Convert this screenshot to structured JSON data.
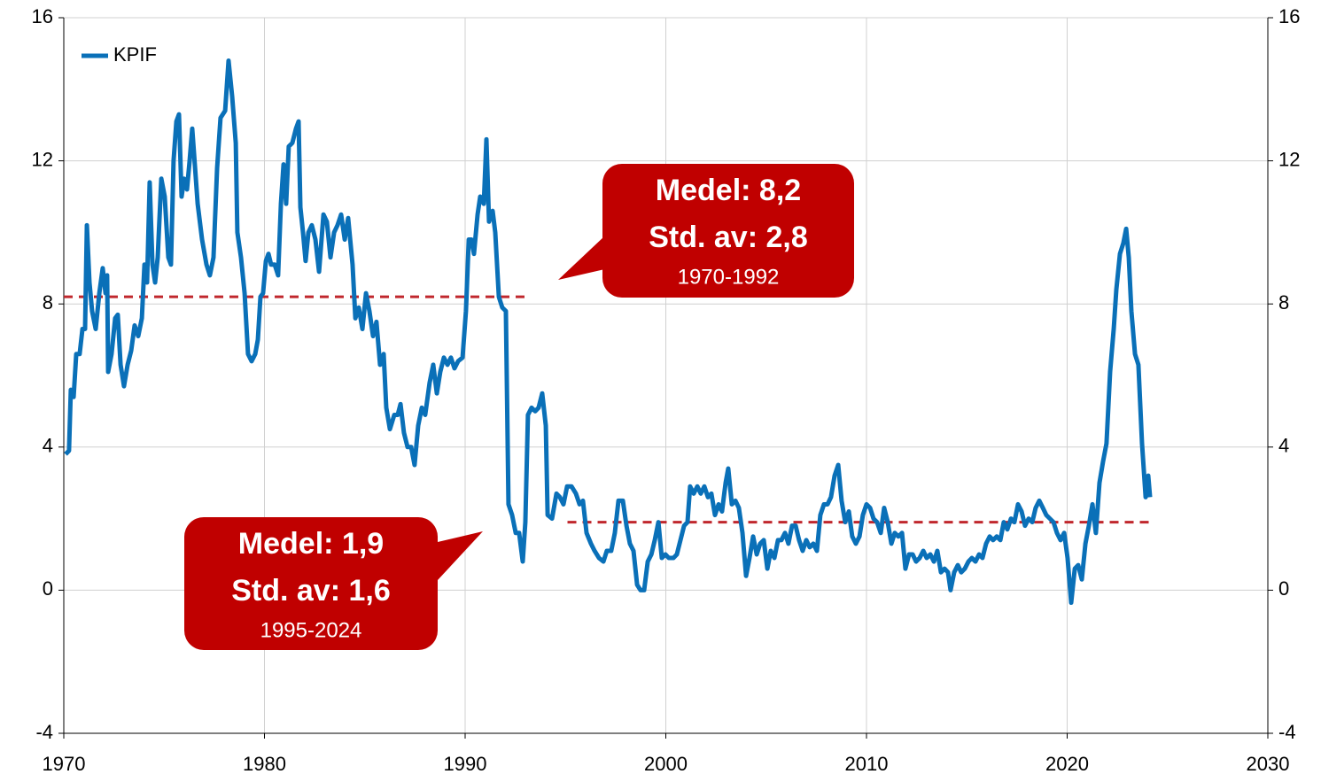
{
  "chart_data": {
    "type": "line",
    "x": [
      1970.09,
      1970.26,
      1970.35,
      1970.49,
      1970.62,
      1970.79,
      1970.93,
      1971.06,
      1971.15,
      1971.28,
      1971.41,
      1971.59,
      1971.77,
      1971.94,
      1972.08,
      1972.16,
      1972.21,
      1972.38,
      1972.56,
      1972.69,
      1972.83,
      1973.0,
      1973.18,
      1973.36,
      1973.53,
      1973.71,
      1973.89,
      1974.02,
      1974.15,
      1974.28,
      1974.42,
      1974.55,
      1974.68,
      1974.86,
      1975.03,
      1975.21,
      1975.34,
      1975.47,
      1975.61,
      1975.74,
      1975.87,
      1976.0,
      1976.14,
      1976.27,
      1976.4,
      1976.53,
      1976.67,
      1976.89,
      1977.11,
      1977.28,
      1977.46,
      1977.64,
      1977.81,
      1978.04,
      1978.21,
      1978.39,
      1978.57,
      1978.65,
      1978.83,
      1979.01,
      1979.18,
      1979.36,
      1979.54,
      1979.67,
      1979.8,
      1979.93,
      1980.07,
      1980.2,
      1980.33,
      1980.51,
      1980.68,
      1980.82,
      1980.95,
      1981.08,
      1981.21,
      1981.39,
      1981.57,
      1981.7,
      1981.79,
      1981.92,
      1982.05,
      1982.19,
      1982.36,
      1982.54,
      1982.72,
      1982.94,
      1983.11,
      1983.29,
      1983.47,
      1983.64,
      1983.82,
      1984.0,
      1984.17,
      1984.39,
      1984.53,
      1984.7,
      1984.88,
      1985.06,
      1985.23,
      1985.41,
      1985.58,
      1985.76,
      1985.94,
      1986.07,
      1986.25,
      1986.47,
      1986.64,
      1986.78,
      1986.95,
      1987.13,
      1987.31,
      1987.48,
      1987.66,
      1987.84,
      1988.01,
      1988.23,
      1988.41,
      1988.59,
      1988.76,
      1988.94,
      1989.12,
      1989.29,
      1989.47,
      1989.65,
      1989.87,
      1990.04,
      1990.18,
      1990.31,
      1990.44,
      1990.62,
      1990.75,
      1990.93,
      1991.06,
      1991.19,
      1991.37,
      1991.5,
      1991.68,
      1991.85,
      1992.03,
      1992.16,
      1992.34,
      1992.52,
      1992.69,
      1992.87,
      1993.0,
      1993.13,
      1993.31,
      1993.49,
      1993.66,
      1993.84,
      1994.02,
      1994.11,
      1994.33,
      1994.55,
      1994.72,
      1994.9,
      1995.08,
      1995.3,
      1995.52,
      1995.7,
      1995.87,
      1996.05,
      1996.27,
      1996.45,
      1996.67,
      1996.89,
      1997.06,
      1997.28,
      1997.46,
      1997.64,
      1997.86,
      1998.04,
      1998.21,
      1998.39,
      1998.57,
      1998.74,
      1998.92,
      1999.1,
      1999.28,
      1999.45,
      1999.63,
      1999.8,
      1999.98,
      2000.15,
      2000.38,
      2000.55,
      2000.73,
      2000.91,
      2001.08,
      2001.21,
      2001.39,
      2001.57,
      2001.74,
      2001.92,
      2002.1,
      2002.27,
      2002.45,
      2002.63,
      2002.8,
      2002.98,
      2003.11,
      2003.29,
      2003.47,
      2003.64,
      2003.82,
      2004.0,
      2004.17,
      2004.35,
      2004.53,
      2004.7,
      2004.88,
      2005.06,
      2005.23,
      2005.41,
      2005.59,
      2005.76,
      2005.94,
      2006.11,
      2006.29,
      2006.47,
      2006.64,
      2006.82,
      2007.0,
      2007.17,
      2007.35,
      2007.53,
      2007.7,
      2007.88,
      2008.06,
      2008.23,
      2008.41,
      2008.59,
      2008.76,
      2008.94,
      2009.12,
      2009.29,
      2009.47,
      2009.65,
      2009.82,
      2010.0,
      2010.18,
      2010.35,
      2010.53,
      2010.71,
      2010.88,
      2011.06,
      2011.24,
      2011.41,
      2011.59,
      2011.77,
      2011.94,
      2012.12,
      2012.3,
      2012.47,
      2012.65,
      2012.83,
      2013.0,
      2013.18,
      2013.36,
      2013.53,
      2013.71,
      2013.89,
      2014.06,
      2014.19,
      2014.37,
      2014.55,
      2014.72,
      2014.9,
      2015.08,
      2015.25,
      2015.43,
      2015.61,
      2015.78,
      2015.96,
      2016.14,
      2016.31,
      2016.49,
      2016.67,
      2016.84,
      2017.02,
      2017.2,
      2017.37,
      2017.55,
      2017.73,
      2017.9,
      2018.08,
      2018.26,
      2018.43,
      2018.61,
      2018.79,
      2018.96,
      2019.14,
      2019.32,
      2019.49,
      2019.67,
      2019.85,
      2020.02,
      2020.2,
      2020.38,
      2020.55,
      2020.73,
      2020.91,
      2021.08,
      2021.26,
      2021.43,
      2021.61,
      2021.79,
      2021.96,
      2022.14,
      2022.32,
      2022.45,
      2022.63,
      2022.8,
      2022.94,
      2023.07,
      2023.2,
      2023.38,
      2023.55,
      2023.73,
      2023.91,
      2024.04,
      2024.13
    ],
    "series": [
      {
        "name": "KPIF",
        "color": "#0a70b8",
        "values": [
          3.8,
          3.9,
          5.6,
          5.4,
          6.6,
          6.6,
          7.3,
          7.3,
          10.2,
          8.6,
          7.8,
          7.3,
          8.3,
          9.0,
          8.3,
          8.8,
          6.1,
          6.6,
          7.6,
          7.7,
          6.3,
          5.7,
          6.3,
          6.7,
          7.4,
          7.1,
          7.6,
          9.1,
          8.6,
          11.4,
          9.1,
          8.6,
          9.3,
          11.5,
          11.0,
          9.3,
          9.1,
          12.0,
          13.1,
          13.3,
          11.0,
          11.5,
          11.2,
          12.0,
          12.9,
          11.9,
          10.8,
          9.8,
          9.1,
          8.8,
          9.3,
          11.8,
          13.2,
          13.4,
          14.8,
          13.8,
          12.5,
          10.0,
          9.3,
          8.3,
          6.6,
          6.4,
          6.6,
          7.0,
          8.2,
          8.3,
          9.2,
          9.4,
          9.1,
          9.1,
          8.8,
          10.8,
          11.9,
          10.8,
          12.4,
          12.5,
          12.9,
          13.1,
          10.7,
          10.0,
          9.2,
          10.0,
          10.2,
          9.8,
          8.9,
          10.5,
          10.3,
          9.3,
          10.0,
          10.2,
          10.5,
          9.8,
          10.4,
          9.1,
          7.6,
          7.9,
          7.3,
          8.3,
          7.8,
          7.1,
          7.5,
          6.3,
          6.6,
          5.1,
          4.5,
          4.9,
          4.9,
          5.2,
          4.4,
          4.0,
          4.0,
          3.5,
          4.6,
          5.1,
          4.9,
          5.8,
          6.3,
          5.5,
          6.1,
          6.5,
          6.3,
          6.5,
          6.2,
          6.4,
          6.5,
          7.8,
          9.8,
          9.8,
          9.4,
          10.5,
          11.0,
          10.8,
          12.6,
          10.3,
          10.6,
          10.0,
          8.2,
          7.9,
          7.8,
          2.4,
          2.1,
          1.6,
          1.6,
          0.8,
          1.9,
          4.9,
          5.1,
          5.0,
          5.1,
          5.5,
          4.6,
          2.1,
          2.0,
          2.7,
          2.6,
          2.4,
          2.9,
          2.9,
          2.7,
          2.4,
          2.5,
          1.6,
          1.3,
          1.1,
          0.9,
          0.8,
          1.1,
          1.1,
          1.6,
          2.5,
          2.5,
          1.8,
          1.3,
          1.1,
          0.15,
          0.0,
          0.0,
          0.8,
          1.0,
          1.4,
          1.9,
          0.9,
          1.0,
          0.9,
          0.9,
          1.0,
          1.4,
          1.8,
          1.9,
          2.9,
          2.7,
          2.9,
          2.7,
          2.9,
          2.6,
          2.7,
          2.1,
          2.4,
          2.2,
          3.0,
          3.4,
          2.4,
          2.5,
          2.3,
          1.6,
          0.4,
          0.9,
          1.5,
          1.0,
          1.3,
          1.4,
          0.6,
          1.1,
          0.9,
          1.4,
          1.4,
          1.6,
          1.3,
          1.8,
          1.8,
          1.4,
          1.1,
          1.4,
          1.2,
          1.3,
          1.1,
          2.1,
          2.4,
          2.4,
          2.6,
          3.2,
          3.5,
          2.5,
          1.9,
          2.2,
          1.5,
          1.3,
          1.5,
          2.1,
          2.4,
          2.3,
          2.0,
          1.9,
          1.6,
          2.3,
          1.9,
          1.3,
          1.6,
          1.5,
          1.6,
          0.6,
          1.0,
          1.0,
          0.8,
          0.9,
          1.1,
          0.9,
          1.0,
          0.8,
          1.1,
          0.5,
          0.6,
          0.5,
          0.0,
          0.5,
          0.7,
          0.5,
          0.6,
          0.8,
          0.9,
          0.8,
          1.0,
          0.9,
          1.3,
          1.5,
          1.4,
          1.5,
          1.4,
          1.9,
          1.7,
          2.0,
          1.9,
          2.4,
          2.2,
          1.8,
          2.0,
          1.9,
          2.3,
          2.5,
          2.3,
          2.1,
          2.0,
          1.9,
          1.6,
          1.4,
          1.6,
          0.9,
          -0.35,
          0.6,
          0.7,
          0.3,
          1.3,
          1.8,
          2.4,
          1.6,
          3.0,
          3.6,
          4.1,
          6.1,
          7.3,
          8.4,
          9.4,
          9.7,
          10.1,
          9.3,
          7.8,
          6.6,
          6.3,
          4.1,
          2.6,
          3.2,
          2.6
        ]
      }
    ],
    "reference_lines": [
      {
        "value": 8.2,
        "x": [
          1970,
          1993
        ],
        "color": "#c0272d"
      },
      {
        "value": 1.9,
        "x": [
          1995.1,
          2024.1
        ],
        "color": "#c0272d"
      }
    ],
    "annotations": [
      {
        "lines": [
          "Medel: 8,2",
          "Std. av: 2,8",
          "1970-1992"
        ],
        "color": "#c00000"
      },
      {
        "lines": [
          "Medel: 1,9",
          "Std. av: 1,6",
          "1995-2024"
        ],
        "color": "#c00000"
      }
    ],
    "xlim": [
      1970,
      2030
    ],
    "xticks": [
      1970,
      1980,
      1990,
      2000,
      2010,
      2020,
      2030
    ],
    "ylim": [
      -4,
      16
    ],
    "yticks": [
      -4,
      0,
      4,
      8,
      12,
      16
    ],
    "y2lim": [
      -4,
      16
    ],
    "y2ticks": [
      -4,
      0,
      4,
      8,
      12,
      16
    ],
    "grid": true,
    "legend": "top-left"
  }
}
